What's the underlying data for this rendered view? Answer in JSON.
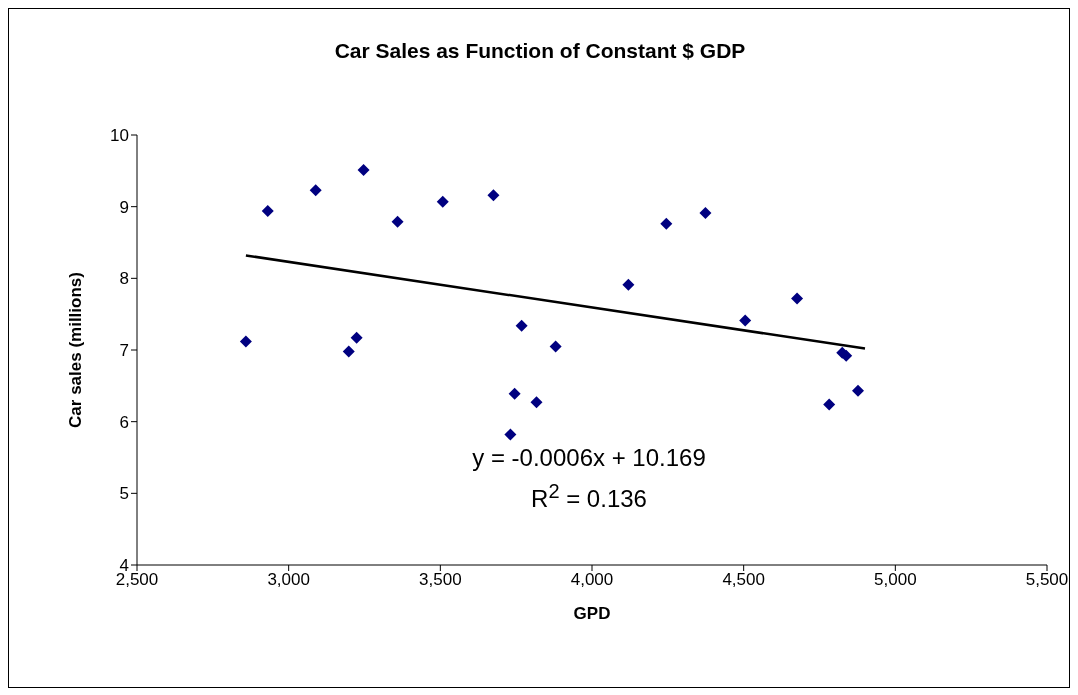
{
  "chart_data": {
    "type": "scatter",
    "title": "Car Sales as Function of Constant $ GDP",
    "xlabel": "GPD",
    "ylabel": "Car sales (millions)",
    "xlim": [
      2500,
      5500
    ],
    "xticks": [
      {
        "value": 2500,
        "label": "2,500"
      },
      {
        "value": 3000,
        "label": "3,000"
      },
      {
        "value": 3500,
        "label": "3,500"
      },
      {
        "value": 4000,
        "label": "4,000"
      },
      {
        "value": 4500,
        "label": "4,500"
      },
      {
        "value": 5000,
        "label": "5,000"
      },
      {
        "value": 5500,
        "label": "5,500"
      }
    ],
    "ylim": [
      4,
      10
    ],
    "yticks": [
      4,
      5,
      6,
      7,
      8,
      9,
      10
    ],
    "marker": "diamond",
    "series": [
      {
        "color": "#000080",
        "x": [
          2859,
          2931,
          3089,
          3247,
          3359,
          3508,
          3675,
          3198,
          3224,
          3768,
          3745,
          3731,
          3817,
          3880,
          4120,
          4245,
          4374,
          4505,
          4676,
          4825,
          4838,
          4782,
          4877
        ],
        "values": [
          7.12,
          8.94,
          9.23,
          9.51,
          8.79,
          9.07,
          9.16,
          6.98,
          7.17,
          7.34,
          6.39,
          5.82,
          6.27,
          7.05,
          7.91,
          8.76,
          8.91,
          7.41,
          7.72,
          6.96,
          6.92,
          6.24,
          6.43
        ]
      },
      {
        "type": "line",
        "marker": "none",
        "color": "#000000",
        "x": [
          2859,
          4900
        ],
        "values": [
          8.32,
          7.02
        ]
      }
    ],
    "annotations": [
      "y = -0.0006x + 10.169",
      "R$^{2}$ = 0.136"
    ]
  }
}
